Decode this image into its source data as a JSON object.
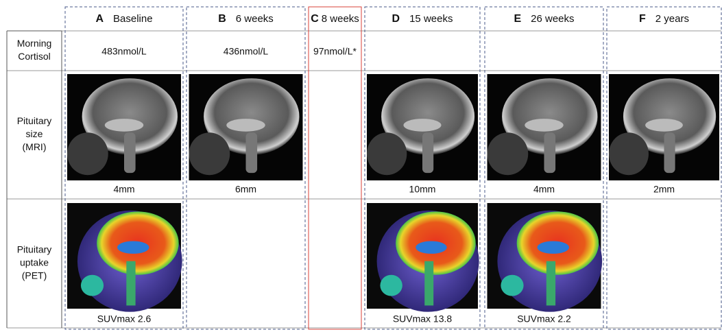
{
  "columns": [
    {
      "letter": "A",
      "label": "Baseline"
    },
    {
      "letter": "B",
      "label": "6 weeks"
    },
    {
      "letter": "C",
      "label": "8 weeks"
    },
    {
      "letter": "D",
      "label": "15 weeks"
    },
    {
      "letter": "E",
      "label": "26 weeks"
    },
    {
      "letter": "F",
      "label": "2 years"
    }
  ],
  "rows": [
    {
      "label": [
        "Morning",
        "Cortisol"
      ],
      "cells": [
        "483nmol/L",
        "436nmol/L",
        "97nmol/L*",
        null,
        null,
        null
      ]
    },
    {
      "label": [
        "Pituitary",
        "size",
        "(MRI)"
      ],
      "cells": [
        "4mm",
        "6mm",
        null,
        "10mm",
        "4mm",
        "2mm"
      ]
    },
    {
      "label": [
        "Pituitary",
        "uptake",
        "(PET)"
      ],
      "cells": [
        "SUVmax 2.6",
        null,
        null,
        "SUVmax 13.8",
        "SUVmax 2.2",
        null
      ]
    }
  ]
}
